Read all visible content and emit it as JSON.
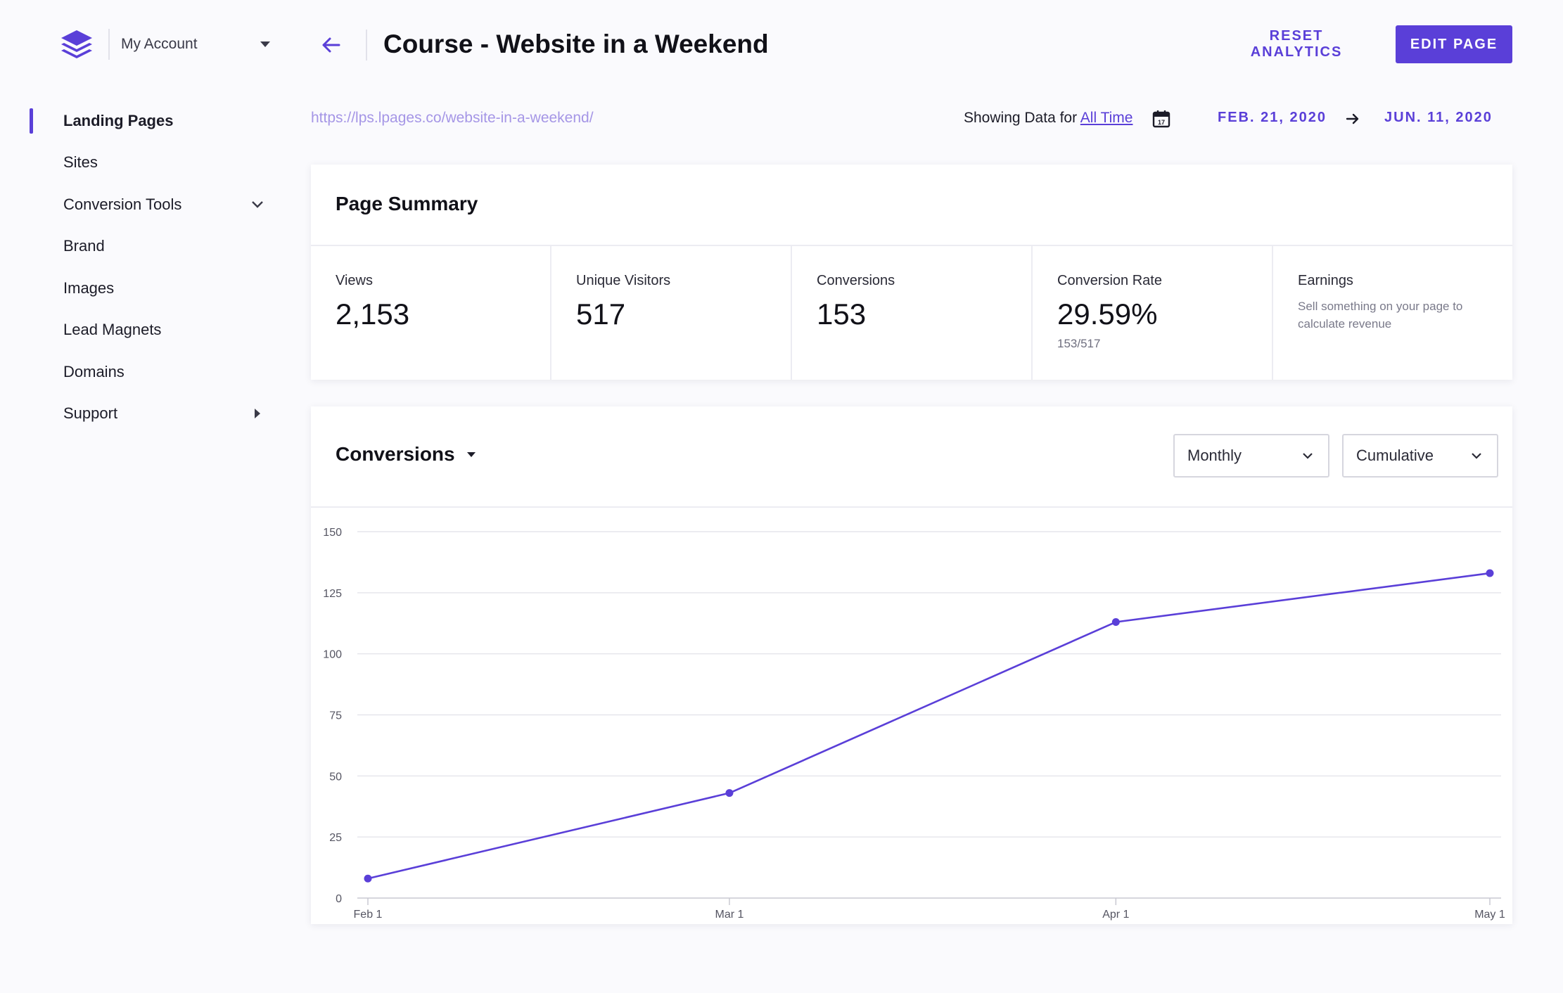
{
  "account": {
    "label": "My Account"
  },
  "sidebar": {
    "items": [
      {
        "label": "Landing Pages",
        "active": true,
        "chevron": ""
      },
      {
        "label": "Sites",
        "active": false,
        "chevron": ""
      },
      {
        "label": "Conversion Tools",
        "active": false,
        "chevron": "down"
      },
      {
        "label": "Brand",
        "active": false,
        "chevron": ""
      },
      {
        "label": "Images",
        "active": false,
        "chevron": ""
      },
      {
        "label": "Lead Magnets",
        "active": false,
        "chevron": ""
      },
      {
        "label": "Domains",
        "active": false,
        "chevron": ""
      },
      {
        "label": "Support",
        "active": false,
        "chevron": "right"
      }
    ]
  },
  "header": {
    "title": "Course - Website in a Weekend",
    "reset_label": "RESET ANALYTICS",
    "edit_label": "EDIT PAGE"
  },
  "subheader": {
    "url": "https://lps.lpages.co/website-in-a-weekend/",
    "showing_prefix": "Showing Data for",
    "range_link": "All Time",
    "date_start": "FEB. 21, 2020",
    "date_end": "JUN. 11, 2020"
  },
  "summary": {
    "title": "Page Summary",
    "metrics": [
      {
        "label": "Views",
        "value": "2,153"
      },
      {
        "label": "Unique Visitors",
        "value": "517"
      },
      {
        "label": "Conversions",
        "value": "153"
      },
      {
        "label": "Conversion Rate",
        "value": "29.59%",
        "sub": "153/517"
      },
      {
        "label": "Earnings",
        "note": "Sell something on your page to calculate revenue"
      }
    ]
  },
  "conversions": {
    "title": "Conversions",
    "period": "Monthly",
    "mode": "Cumulative"
  },
  "colors": {
    "accent": "#5a3fd8",
    "url": "#a596e6"
  },
  "chart_data": {
    "type": "line",
    "title": "",
    "xlabel": "",
    "ylabel": "",
    "x": [
      "Feb 1",
      "Mar 1",
      "Apr 1",
      "May 1"
    ],
    "x_days": [
      0,
      29,
      60,
      90
    ],
    "series": [
      {
        "values": [
          8,
          43,
          113,
          133
        ]
      }
    ],
    "ylim": [
      0,
      150
    ],
    "yticks": [
      0,
      25,
      50,
      75,
      100,
      125,
      150
    ],
    "grid": true,
    "legend": "none",
    "color": "#5a3fd8"
  }
}
